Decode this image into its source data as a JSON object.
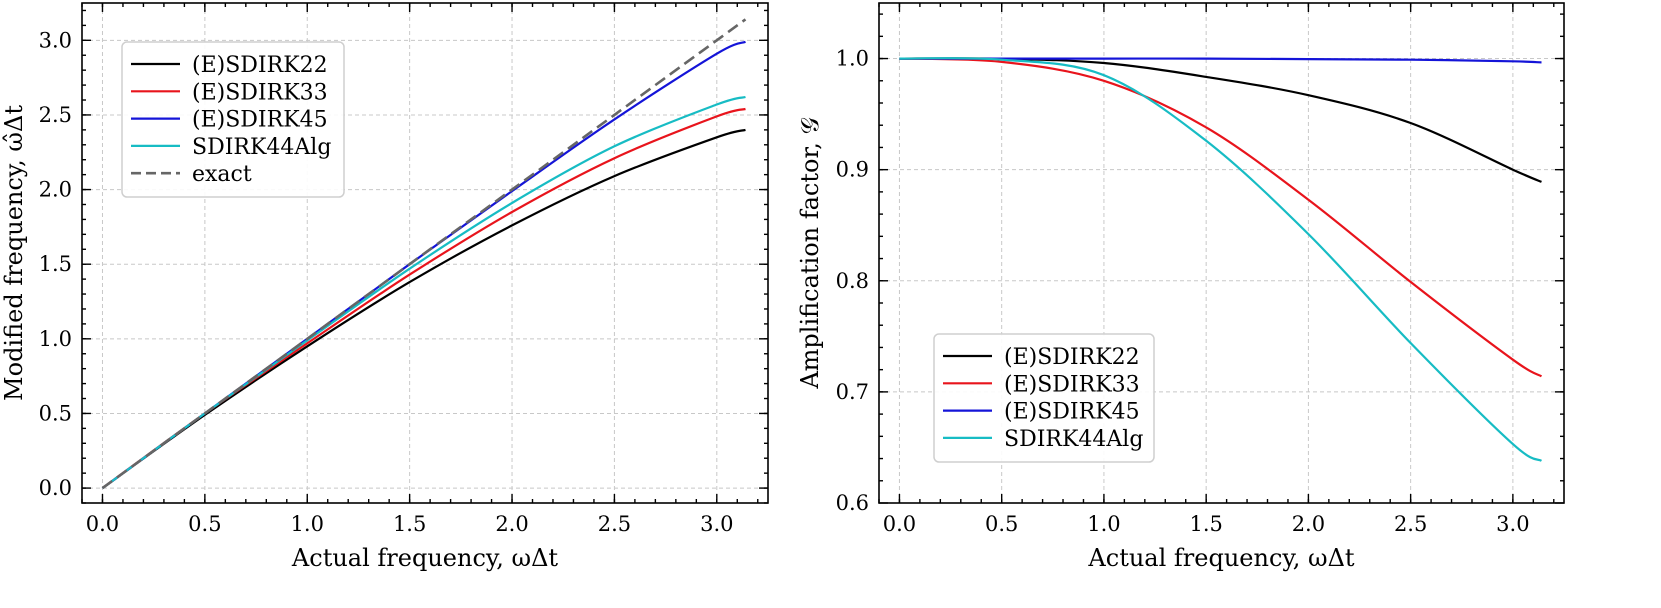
{
  "chart_data": [
    {
      "type": "line",
      "xlabel": "Actual frequency, ωΔt",
      "ylabel": "Modified frequency, ω̂Δt",
      "xlim": [
        -0.1,
        3.25
      ],
      "ylim": [
        -0.1,
        3.25
      ],
      "xticks": [
        "0.0",
        "0.5",
        "1.0",
        "1.5",
        "2.0",
        "2.5",
        "3.0"
      ],
      "yticks": [
        "0.0",
        "0.5",
        "1.0",
        "1.5",
        "2.0",
        "2.5",
        "3.0"
      ],
      "grid": true,
      "legend_position": "top-left",
      "x": [
        0,
        0.5,
        1.0,
        1.5,
        2.0,
        2.5,
        3.0,
        3.14
      ],
      "series": [
        {
          "name": "(E)SDIRK22",
          "color": "#000000",
          "dash": false,
          "values": [
            0,
            0.49,
            0.95,
            1.38,
            1.76,
            2.09,
            2.35,
            2.4
          ]
        },
        {
          "name": "(E)SDIRK33",
          "color": "#e8141c",
          "dash": false,
          "values": [
            0,
            0.5,
            0.97,
            1.43,
            1.85,
            2.21,
            2.49,
            2.54
          ]
        },
        {
          "name": "(E)SDIRK45",
          "color": "#1414d8",
          "dash": false,
          "values": [
            0,
            0.5,
            1.0,
            1.5,
            1.99,
            2.47,
            2.91,
            2.99
          ]
        },
        {
          "name": "SDIRK44Alg",
          "color": "#17bcc4",
          "dash": false,
          "values": [
            0,
            0.5,
            0.99,
            1.47,
            1.91,
            2.29,
            2.57,
            2.62
          ]
        },
        {
          "name": "exact",
          "color": "#666666",
          "dash": true,
          "values": [
            0,
            0.5,
            1.0,
            1.5,
            2.0,
            2.5,
            3.0,
            3.14
          ]
        }
      ]
    },
    {
      "type": "line",
      "xlabel": "Actual frequency, ωΔt",
      "ylabel": "Amplification factor, 𝒢",
      "xlim": [
        -0.1,
        3.25
      ],
      "ylim": [
        0.6,
        1.05
      ],
      "xticks": [
        "0.0",
        "0.5",
        "1.0",
        "1.5",
        "2.0",
        "2.5",
        "3.0"
      ],
      "yticks": [
        "0.6",
        "0.7",
        "0.8",
        "0.9",
        "1.0"
      ],
      "grid": true,
      "legend_position": "bottom-left",
      "x": [
        0,
        0.5,
        1.0,
        1.5,
        2.0,
        2.5,
        3.0,
        3.14
      ],
      "series": [
        {
          "name": "(E)SDIRK22",
          "color": "#000000",
          "values": [
            1.0,
            0.9998,
            0.996,
            0.9835,
            0.967,
            0.942,
            0.9,
            0.889
          ]
        },
        {
          "name": "(E)SDIRK33",
          "color": "#e8141c",
          "values": [
            1.0,
            0.997,
            0.98,
            0.938,
            0.873,
            0.799,
            0.729,
            0.714
          ]
        },
        {
          "name": "(E)SDIRK45",
          "color": "#1414d8",
          "values": [
            1.0,
            1.0,
            1.0,
            1.0,
            0.9995,
            0.999,
            0.9975,
            0.9965
          ]
        },
        {
          "name": "SDIRK44Alg",
          "color": "#17bcc4",
          "values": [
            1.0,
            0.999,
            0.985,
            0.926,
            0.842,
            0.744,
            0.653,
            0.638
          ]
        }
      ]
    }
  ]
}
